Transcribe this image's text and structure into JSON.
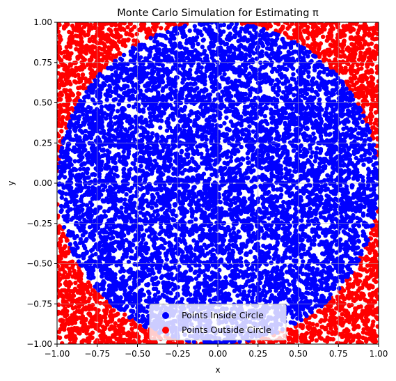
{
  "chart_data": {
    "type": "scatter",
    "title": "Monte Carlo Simulation for Estimating π",
    "xlabel": "x",
    "ylabel": "y",
    "xlim": [
      -1.0,
      1.0
    ],
    "ylim": [
      -1.0,
      1.0
    ],
    "x_ticks": [
      -1.0,
      -0.75,
      -0.5,
      -0.25,
      0.0,
      0.25,
      0.5,
      0.75,
      1.0
    ],
    "y_ticks": [
      -1.0,
      -0.75,
      -0.5,
      -0.25,
      0.0,
      0.25,
      0.5,
      0.75,
      1.0
    ],
    "x_tick_labels": [
      "−1.00",
      "−0.75",
      "−0.50",
      "−0.25",
      "0.00",
      "0.25",
      "0.50",
      "0.75",
      "1.00"
    ],
    "y_tick_labels": [
      "−1.00",
      "−0.75",
      "−0.50",
      "−0.25",
      "0.00",
      "0.25",
      "0.50",
      "0.75",
      "1.00"
    ],
    "grid": true,
    "legend_position": "bottom-center",
    "circle_radius": 1.0,
    "point_count": 10000,
    "series": [
      {
        "name": "Points Inside Circle",
        "color": "#0000ff",
        "region": "x^2 + y^2 <= 1"
      },
      {
        "name": "Points Outside Circle",
        "color": "#ff0000",
        "region": "x^2 + y^2 > 1"
      }
    ]
  }
}
